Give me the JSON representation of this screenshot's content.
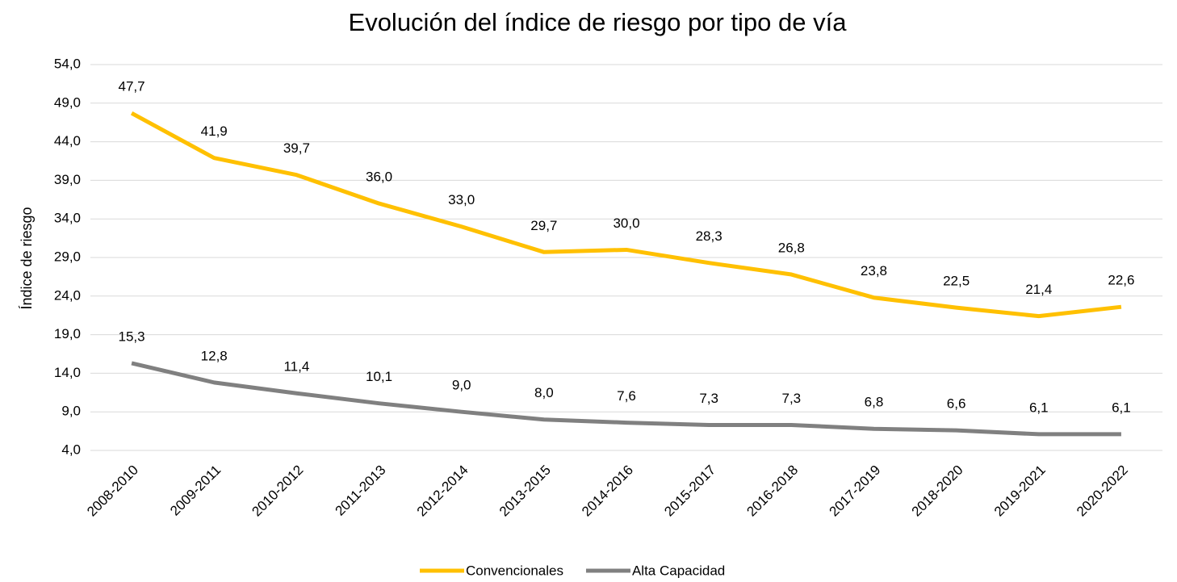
{
  "chart_data": {
    "type": "line",
    "title": "Evolución del índice de riesgo por tipo de vía",
    "y_label": "Índice de riesgo",
    "categories": [
      "2008-2010",
      "2009-2011",
      "2010-2012",
      "2011-2013",
      "2012-2014",
      "2013-2015",
      "2014-2016",
      "2015-2017",
      "2016-2018",
      "2017-2019",
      "2018-2020",
      "2019-2021",
      "2020-2022"
    ],
    "series": [
      {
        "name": "Convencionales",
        "color": "#FFC000",
        "values": [
          47.7,
          41.9,
          39.7,
          36.0,
          33.0,
          29.7,
          30.0,
          28.3,
          26.8,
          23.8,
          22.5,
          21.4,
          22.6
        ],
        "value_labels": [
          "47,7",
          "41,9",
          "39,7",
          "36,0",
          "33,0",
          "29,7",
          "30,0",
          "28,3",
          "26,8",
          "23,8",
          "22,5",
          "21,4",
          "22,6"
        ]
      },
      {
        "name": "Alta Capacidad",
        "color": "#808080",
        "values": [
          15.3,
          12.8,
          11.4,
          10.1,
          9.0,
          8.0,
          7.6,
          7.3,
          7.3,
          6.8,
          6.6,
          6.1,
          6.1
        ],
        "value_labels": [
          "15,3",
          "12,8",
          "11,4",
          "10,1",
          "9,0",
          "8,0",
          "7,6",
          "7,3",
          "7,3",
          "6,8",
          "6,6",
          "6,1",
          "6,1"
        ]
      }
    ],
    "ylim": [
      4,
      54
    ],
    "yticks": [
      {
        "value": 4,
        "label": "4,0"
      },
      {
        "value": 9,
        "label": "9,0"
      },
      {
        "value": 14,
        "label": "14,0"
      },
      {
        "value": 19,
        "label": "19,0"
      },
      {
        "value": 24,
        "label": "24,0"
      },
      {
        "value": 29,
        "label": "29,0"
      },
      {
        "value": 34,
        "label": "34,0"
      },
      {
        "value": 39,
        "label": "39,0"
      },
      {
        "value": 44,
        "label": "44,0"
      },
      {
        "value": 49,
        "label": "49,0"
      },
      {
        "value": 54,
        "label": "54,0"
      }
    ],
    "grid": true,
    "legend": "bottom"
  }
}
